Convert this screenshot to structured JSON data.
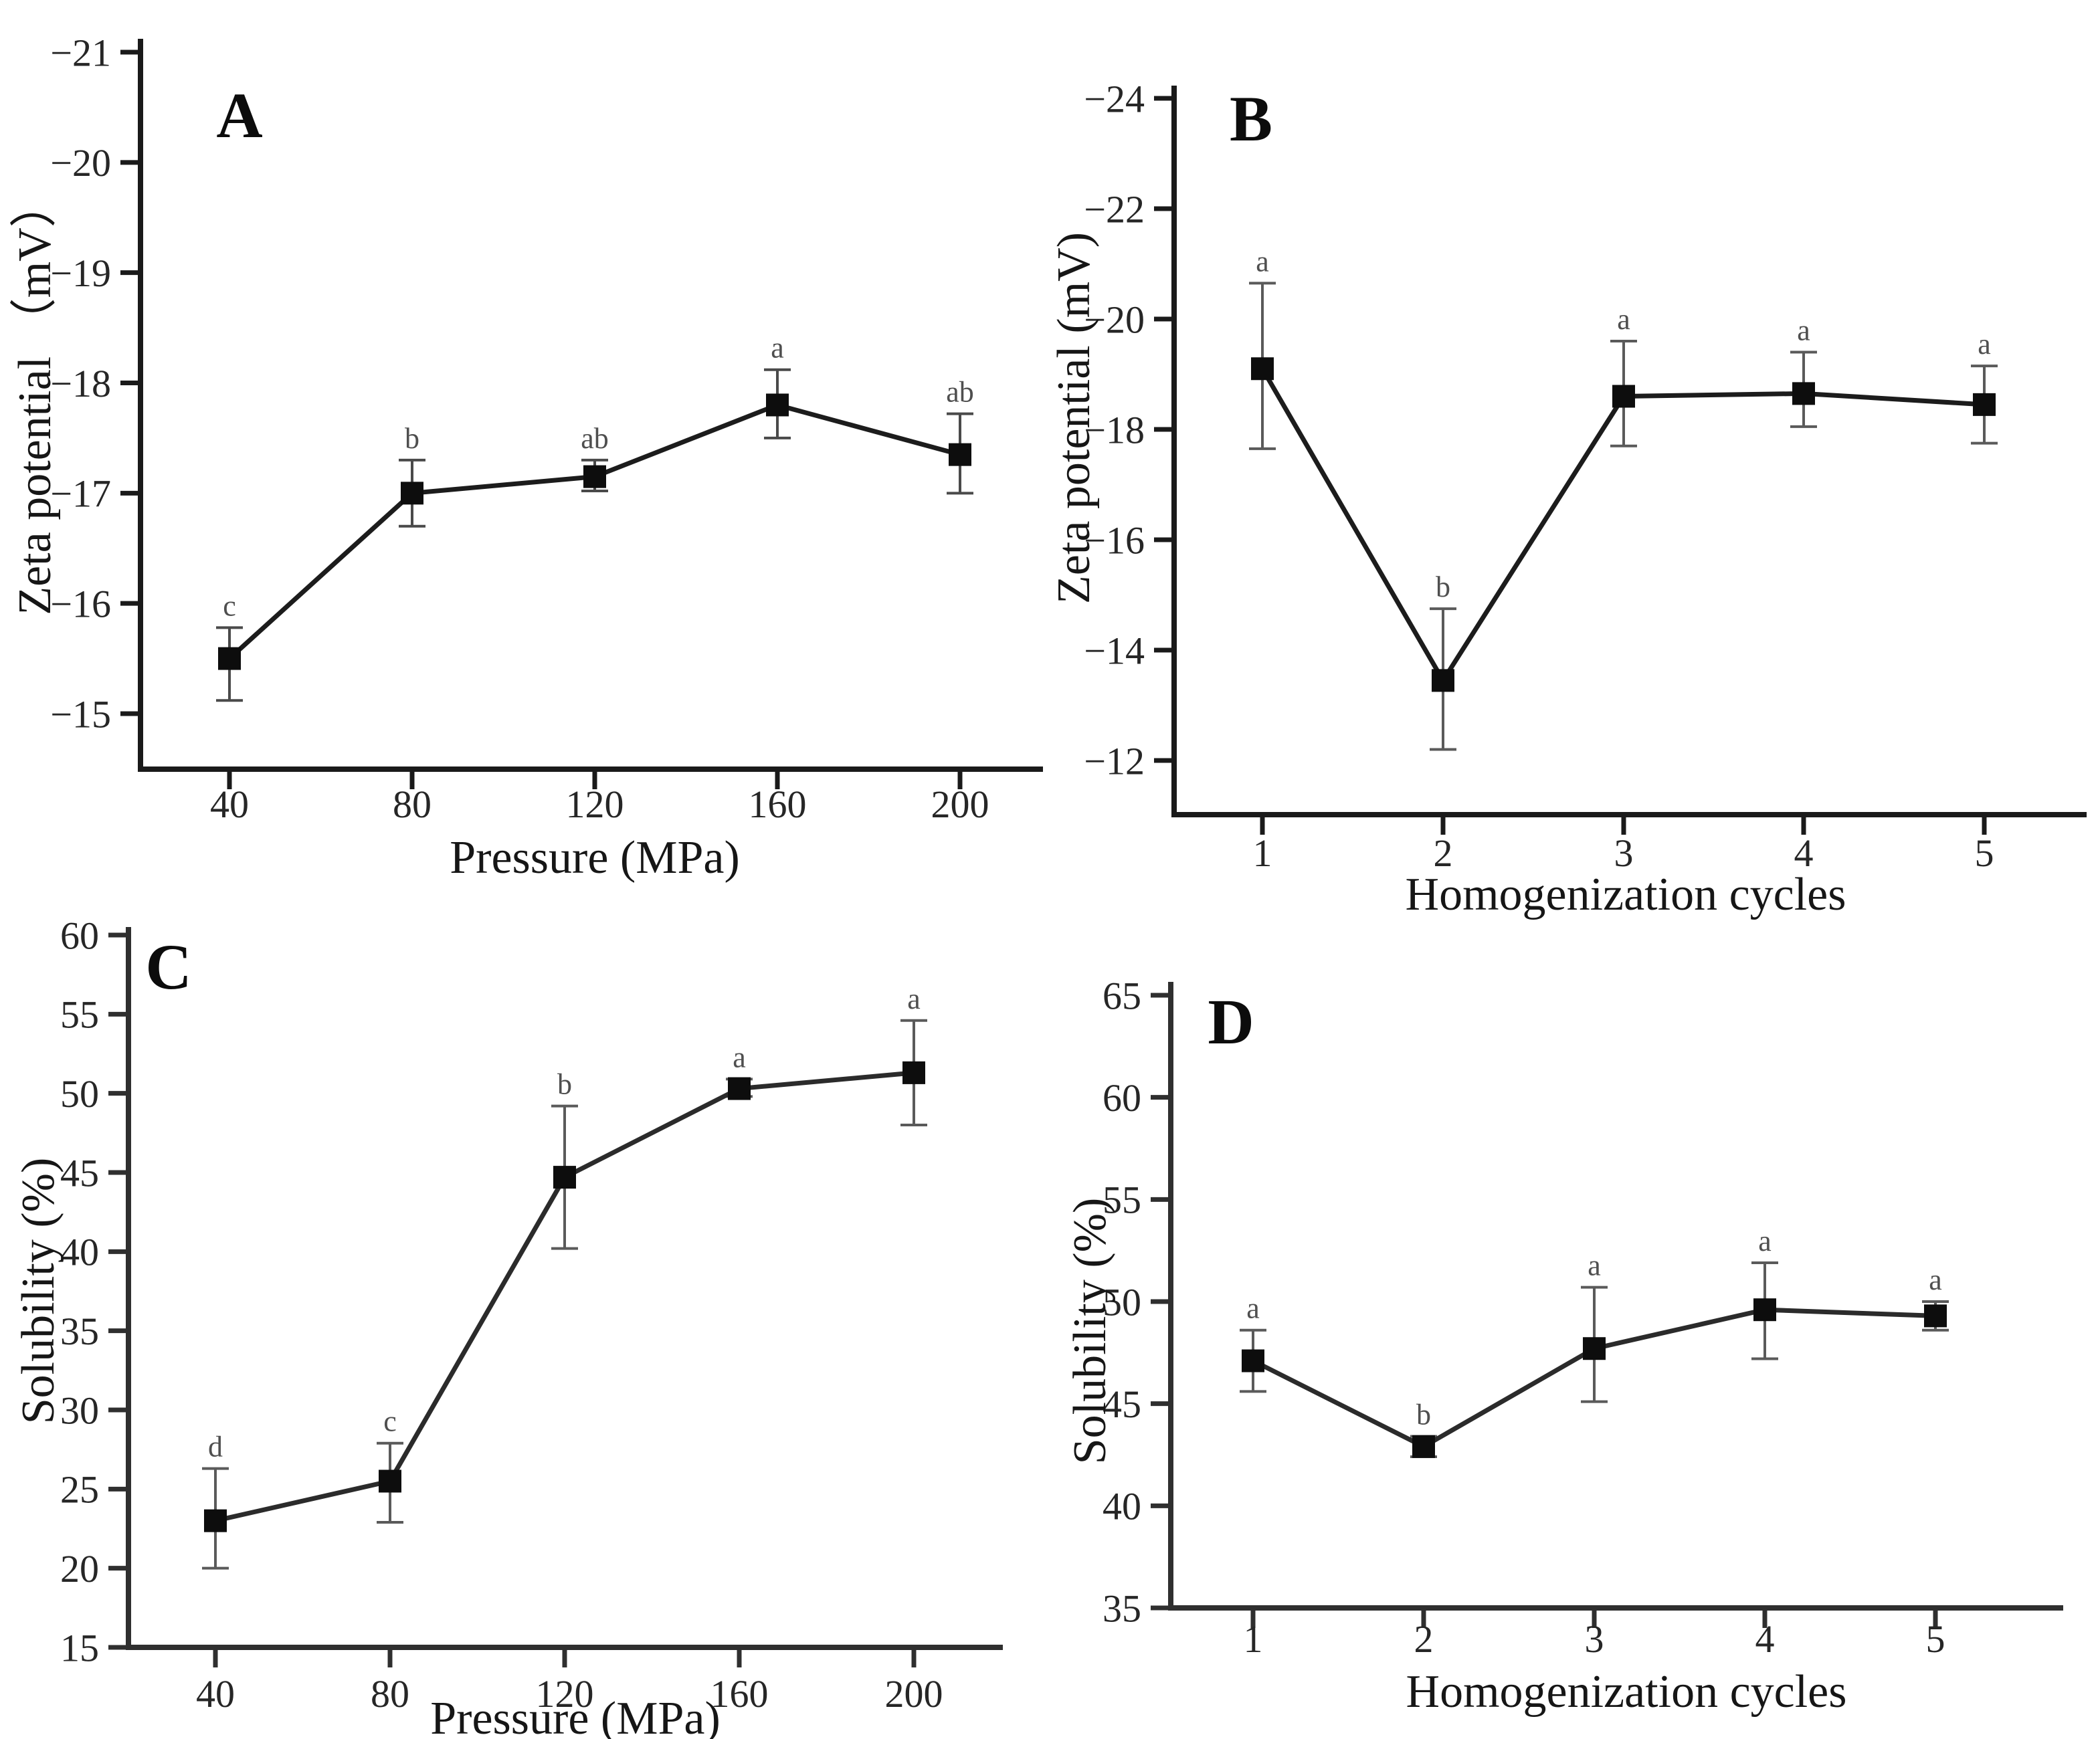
{
  "figure": {
    "background": "#ffffff",
    "description": "Four-panel line chart figure with error bars and significance letters"
  },
  "chart_data": [
    {
      "type": "line",
      "panel_label": "A",
      "xlabel": "Pressure (MPa)",
      "ylabel": "Zeta potential （mV）",
      "x_tick_labels": [
        "40",
        "80",
        "120",
        "160",
        "200"
      ],
      "y_tick_labels": [
        "−21",
        "−20",
        "−19",
        "−18",
        "−17",
        "−16",
        "−15"
      ],
      "y_tick_values": [
        -21,
        -20,
        -19,
        -18,
        -17,
        -16,
        -15
      ],
      "y_axis_inverted": true,
      "ylim": [
        -21,
        -15
      ],
      "grid": false,
      "legend": "none",
      "categories": [
        40,
        80,
        120,
        160,
        200
      ],
      "series": [
        {
          "name": "Zeta potential",
          "values": [
            -15.5,
            -17.0,
            -17.15,
            -17.8,
            -17.35
          ],
          "err_low": [
            -15.12,
            -16.7,
            -17.02,
            -17.5,
            -17.0
          ],
          "err_high": [
            -15.78,
            -17.3,
            -17.3,
            -18.12,
            -17.72
          ],
          "sig_labels": [
            "c",
            "b",
            "ab",
            "a",
            "ab"
          ]
        }
      ],
      "colors": {
        "line": "#1c1c1c",
        "marker": "#0d0d0d",
        "error": "#4a4a4a",
        "sig": "#4f4f4f",
        "axis": "#1a1a1a"
      }
    },
    {
      "type": "line",
      "panel_label": "B",
      "xlabel": "Homogenization cycles",
      "ylabel": "Zeta potential (mV)",
      "x_tick_labels": [
        "1",
        "2",
        "3",
        "4",
        "5"
      ],
      "y_tick_labels": [
        "−24",
        "−22",
        "−20",
        "−18",
        "−16",
        "−14",
        "−12"
      ],
      "y_tick_values": [
        -24,
        -22,
        -20,
        -18,
        -16,
        -14,
        -12
      ],
      "y_axis_inverted": true,
      "ylim": [
        -24,
        -12
      ],
      "grid": false,
      "legend": "none",
      "categories": [
        1,
        2,
        3,
        4,
        5
      ],
      "series": [
        {
          "name": "Zeta potential",
          "values": [
            -19.1,
            -13.45,
            -18.6,
            -18.65,
            -18.45
          ],
          "err_low": [
            -17.65,
            -12.2,
            -17.7,
            -18.05,
            -17.75
          ],
          "err_high": [
            -20.65,
            -14.75,
            -19.6,
            -19.4,
            -19.15
          ],
          "sig_labels": [
            "a",
            "b",
            "a",
            "a",
            "a"
          ]
        }
      ],
      "colors": {
        "line": "#1c1c1c",
        "marker": "#0d0d0d",
        "error": "#5a5a5a",
        "sig": "#4f4f4f",
        "axis": "#1a1a1a"
      }
    },
    {
      "type": "line",
      "panel_label": "C",
      "xlabel": "Pressure (MPa)",
      "ylabel": "Solubility (%)",
      "x_tick_labels": [
        "40",
        "80",
        "120",
        "160",
        "200"
      ],
      "y_tick_labels": [
        "60",
        "55",
        "50",
        "45",
        "40",
        "35",
        "30",
        "25",
        "20",
        "15"
      ],
      "y_tick_values": [
        60,
        55,
        50,
        45,
        40,
        35,
        30,
        25,
        20,
        15
      ],
      "y_axis_inverted": false,
      "ylim": [
        15,
        60
      ],
      "grid": false,
      "legend": "none",
      "categories": [
        40,
        80,
        120,
        160,
        200
      ],
      "series": [
        {
          "name": "Solubility",
          "values": [
            23.0,
            25.5,
            44.7,
            50.3,
            51.3
          ],
          "err_low": [
            20.0,
            22.9,
            40.2,
            49.8,
            48.0
          ],
          "err_high": [
            26.3,
            27.9,
            49.2,
            50.9,
            54.6
          ],
          "sig_labels": [
            "d",
            "c",
            "b",
            "a",
            "a"
          ]
        }
      ],
      "colors": {
        "line": "#2b2b2b",
        "marker": "#0d0d0d",
        "error": "#5a5a5a",
        "sig": "#4f4f4f",
        "axis": "#2f2f2f"
      }
    },
    {
      "type": "line",
      "panel_label": "D",
      "xlabel": "Homogenization cycles",
      "ylabel": "Solubility (%)",
      "x_tick_labels": [
        "1",
        "2",
        "3",
        "4",
        "5"
      ],
      "y_tick_labels": [
        "65",
        "60",
        "55",
        "50",
        "45",
        "40",
        "35"
      ],
      "y_tick_values": [
        65,
        60,
        55,
        50,
        45,
        40,
        35
      ],
      "y_axis_inverted": false,
      "ylim": [
        35,
        65
      ],
      "grid": false,
      "legend": "none",
      "categories": [
        1,
        2,
        3,
        4,
        5
      ],
      "series": [
        {
          "name": "Solubility",
          "values": [
            47.1,
            42.9,
            47.7,
            49.6,
            49.3
          ],
          "err_low": [
            45.6,
            42.4,
            45.1,
            47.2,
            48.6
          ],
          "err_high": [
            48.6,
            43.4,
            50.7,
            51.9,
            50.0
          ],
          "sig_labels": [
            "a",
            "b",
            "a",
            "a",
            "a"
          ]
        }
      ],
      "colors": {
        "line": "#2b2b2b",
        "marker": "#0d0d0d",
        "error": "#5a5a5a",
        "sig": "#4f4f4f",
        "axis": "#2f2f2f"
      }
    }
  ]
}
